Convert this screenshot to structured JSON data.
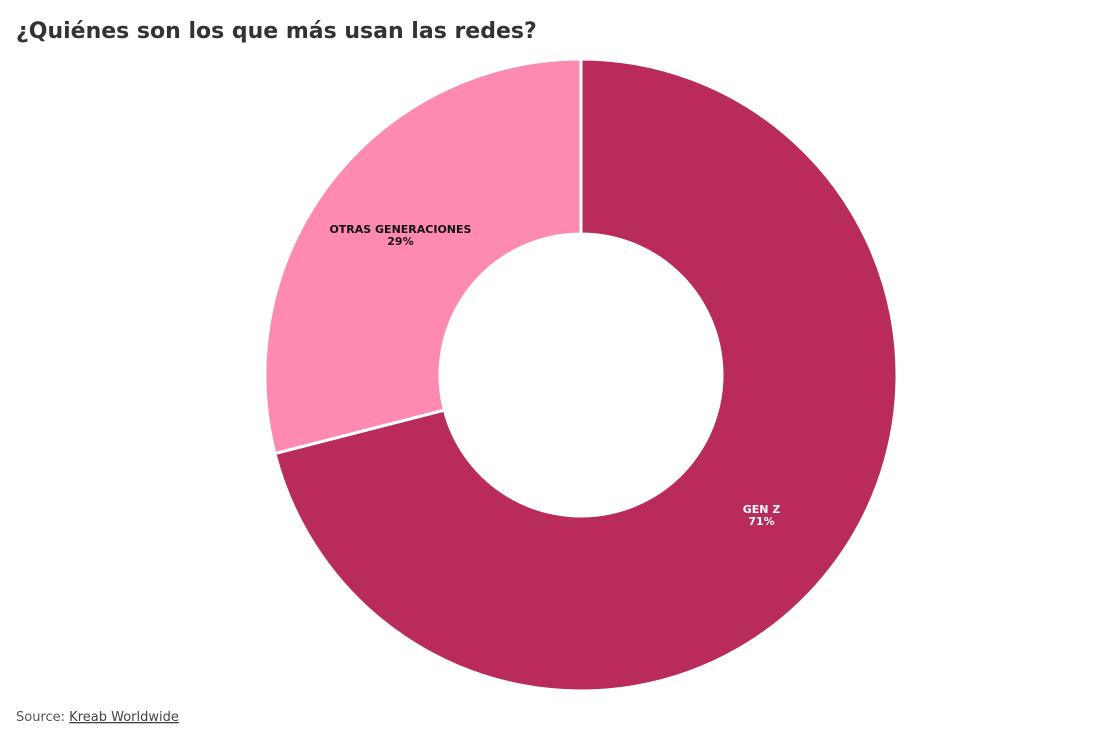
{
  "chart_data": {
    "type": "donut",
    "title": "¿Quiénes son los que más usan las redes?",
    "categories": [
      "GEN Z",
      "OTRAS GENERACIONES"
    ],
    "values": [
      71,
      29
    ],
    "value_labels": [
      "71%",
      "29%"
    ],
    "colors": [
      "#b82b5b",
      "#fe8ab1"
    ]
  },
  "footer": {
    "source_label": "Source:",
    "source": "Kreab Worldwide"
  }
}
